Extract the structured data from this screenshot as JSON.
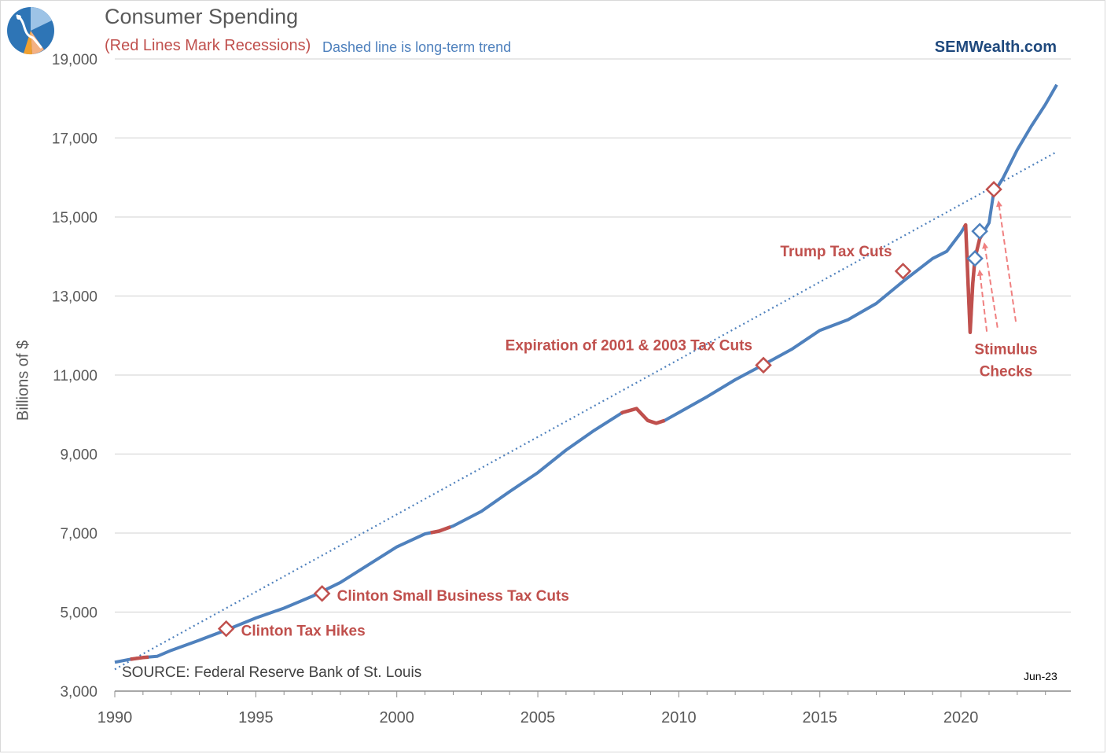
{
  "header": {
    "title": "Consumer Spending",
    "subtitle_recessions": "(Red Lines Mark Recessions)",
    "subtitle_trend": "Dashed line is long-term trend",
    "brand": "SEMWealth.com"
  },
  "footer": {
    "source": "SOURCE:  Federal Reserve Bank of St. Louis",
    "as_of": "Jun-23"
  },
  "logo": {
    "icon": "sem-logo-icon"
  },
  "colors": {
    "series": "#4f81bd",
    "recession": "#c0504d",
    "trend": "#4f81bd",
    "annotation": "#c0504d",
    "arrow": "#f08080",
    "grid": "#d9d9d9",
    "axis_text": "#595959"
  },
  "chart_data": {
    "type": "line",
    "title": "Consumer Spending",
    "subtitle": "(Red Lines Mark Recessions)",
    "xlabel": "",
    "ylabel": "Billions of $",
    "xlim": [
      1990,
      2023.9
    ],
    "ylim": [
      3000,
      19000
    ],
    "x_ticks": [
      1990,
      1995,
      2000,
      2005,
      2010,
      2015,
      2020
    ],
    "x_tick_labels": [
      "1990",
      "1995",
      "2000",
      "2005",
      "2010",
      "2015",
      "2020"
    ],
    "y_ticks": [
      3000,
      5000,
      7000,
      9000,
      11000,
      13000,
      15000,
      17000,
      19000
    ],
    "y_tick_labels": [
      "3,000",
      "5,000",
      "7,000",
      "9,000",
      "11,000",
      "13,000",
      "15,000",
      "17,000",
      "19,000"
    ],
    "grid": true,
    "series": [
      {
        "name": "",
        "role": "actual",
        "x": [
          1990.0,
          1990.5,
          1991.0,
          1991.5,
          1992.0,
          1993.0,
          1994.0,
          1995.0,
          1996.0,
          1997.0,
          1998.0,
          1999.0,
          2000.0,
          2001.0,
          2001.5,
          2002.0,
          2003.0,
          2004.0,
          2005.0,
          2006.0,
          2007.0,
          2008.0,
          2008.5,
          2008.9,
          2009.2,
          2009.5,
          2010.0,
          2011.0,
          2012.0,
          2013.0,
          2014.0,
          2015.0,
          2016.0,
          2017.0,
          2018.0,
          2019.0,
          2019.5,
          2020.0,
          2020.17,
          2020.33,
          2020.42,
          2020.5,
          2020.67,
          2020.83,
          2021.0,
          2021.17,
          2021.25,
          2021.5,
          2022.0,
          2022.5,
          2023.0,
          2023.4
        ],
        "y": [
          3730,
          3800,
          3850,
          3880,
          4030,
          4290,
          4560,
          4850,
          5100,
          5400,
          5750,
          6200,
          6650,
          6980,
          7050,
          7180,
          7550,
          8050,
          8530,
          9100,
          9600,
          10050,
          10150,
          9850,
          9780,
          9850,
          10050,
          10450,
          10880,
          11260,
          11650,
          12130,
          12400,
          12810,
          13400,
          13950,
          14130,
          14600,
          14800,
          12080,
          13300,
          13950,
          14450,
          14650,
          14850,
          15650,
          15700,
          15990,
          16700,
          17300,
          17850,
          18350
        ]
      },
      {
        "name": "",
        "role": "trend",
        "x": [
          1990.0,
          2023.4
        ],
        "y": [
          3550,
          16650
        ]
      }
    ],
    "recessions": [
      {
        "start": 1990.55,
        "end": 1991.2
      },
      {
        "start": 2001.2,
        "end": 2001.9
      },
      {
        "start": 2007.95,
        "end": 2009.5
      },
      {
        "start": 2020.12,
        "end": 2020.85
      }
    ],
    "annotations": [
      {
        "label": "Clinton Tax Hikes",
        "x": 1993.95,
        "y": 4580,
        "text_anchor": "right"
      },
      {
        "label": "Clinton Small Business Tax Cuts",
        "x": 1997.35,
        "y": 5470,
        "text_anchor": "right"
      },
      {
        "label": "Expiration of 2001 & 2003 Tax Cuts",
        "x": 2013.0,
        "y": 11250,
        "text_anchor": "above-left"
      },
      {
        "label": "Trump Tax Cuts",
        "x": 2017.95,
        "y": 13630,
        "text_anchor": "above-left"
      }
    ],
    "stimulus": {
      "label_lines": [
        "Stimulus",
        "Checks"
      ],
      "markers": [
        {
          "x": 2020.5,
          "y": 13950
        },
        {
          "x": 2020.67,
          "y": 14640
        },
        {
          "x": 2021.17,
          "y": 15700
        }
      ],
      "arrow_tails": [
        {
          "x": 2020.92,
          "y": 12100
        },
        {
          "x": 2021.3,
          "y": 12200
        },
        {
          "x": 2021.95,
          "y": 12350
        }
      ]
    }
  }
}
